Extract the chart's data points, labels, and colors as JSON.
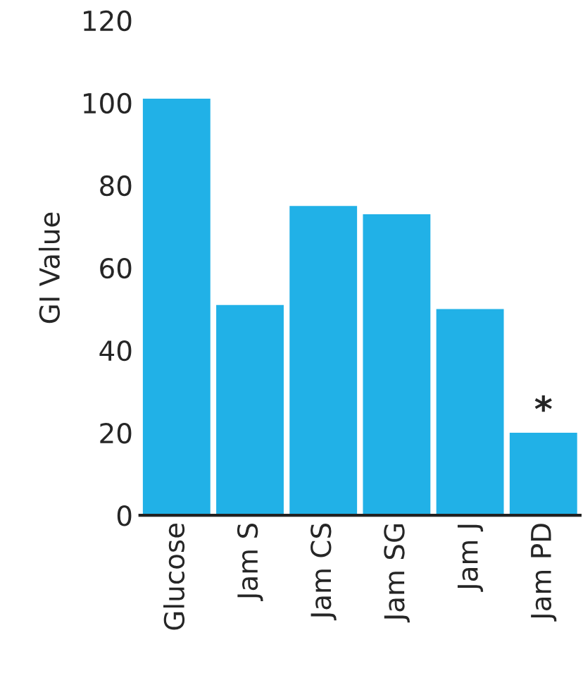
{
  "chart_data": {
    "type": "bar",
    "ylabel": "GI Value",
    "categories": [
      "Glucose",
      "Jam S",
      "Jam CS",
      "Jam SG",
      "Jam J",
      "Jam PD"
    ],
    "values": [
      101,
      51,
      75,
      73,
      50,
      20
    ],
    "color": "#21b1e7",
    "ylim": [
      0,
      120
    ],
    "yticks": [
      0,
      20,
      40,
      60,
      80,
      100,
      120
    ],
    "grid": false,
    "annotations": [
      {
        "text": "*",
        "x": "Jam PD",
        "y": 20
      }
    ]
  }
}
